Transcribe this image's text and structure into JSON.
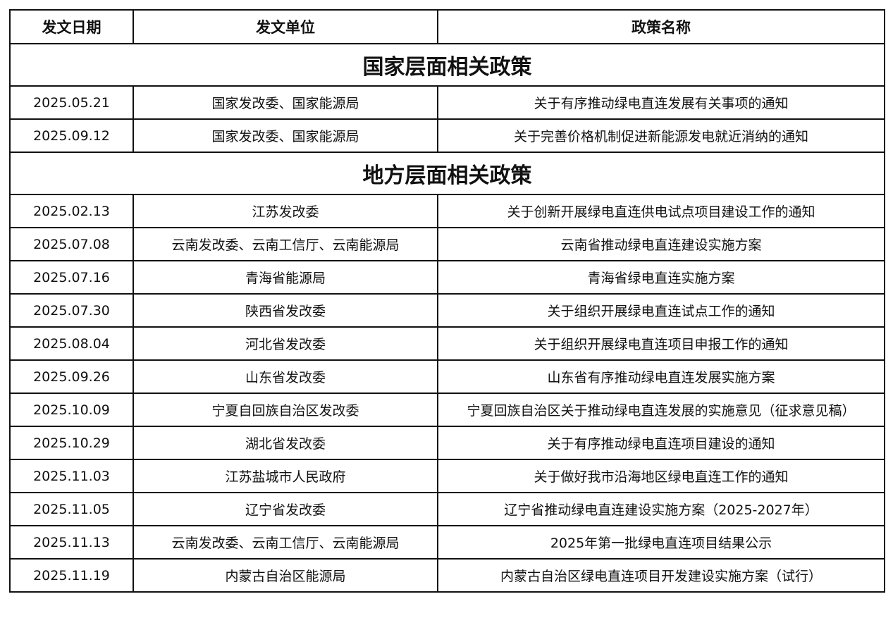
{
  "headers": [
    "发文日期",
    "发文单位",
    "政策名称"
  ],
  "sections": [
    {
      "title": "国家层面相关政策",
      "rows": [
        [
          "2025.05.21",
          "国家发改委、国家能源局",
          "关于有序推动绿电直连发展有关事项的通知"
        ],
        [
          "2025.09.12",
          "国家发改委、国家能源局",
          "关于完善价格机制促进新能源发电就近消纳的通知"
        ]
      ]
    },
    {
      "title": "地方层面相关政策",
      "rows": [
        [
          "2025.02.13",
          "江苏发改委",
          "关于创新开展绿电直连供电试点项目建设工作的通知"
        ],
        [
          "2025.07.08",
          "云南发改委、云南工信厅、云南能源局",
          "云南省推动绿电直连建设实施方案"
        ],
        [
          "2025.07.16",
          "青海省能源局",
          "青海省绿电直连实施方案"
        ],
        [
          "2025.07.30",
          "陕西省发改委",
          "关于组织开展绿电直连试点工作的通知"
        ],
        [
          "2025.08.04",
          "河北省发改委",
          "关于组织开展绿电直连项目申报工作的通知"
        ],
        [
          "2025.09.26",
          "山东省发改委",
          "山东省有序推动绿电直连发展实施方案"
        ],
        [
          "2025.10.09",
          "宁夏自回族自治区发改委",
          "宁夏回族自治区关于推动绿电直连发展的实施意见（征求意见稿）"
        ],
        [
          "2025.10.29",
          "湖北省发改委",
          "关于有序推动绿电直连项目建设的通知"
        ],
        [
          "2025.11.03",
          "江苏盐城市人民政府",
          "关于做好我市沿海地区绿电直连工作的通知"
        ],
        [
          "2025.11.05",
          "辽宁省发改委",
          "辽宁省推动绿电直连建设实施方案（2025-2027年）"
        ],
        [
          "2025.11.13",
          "云南发改委、云南工信厅、云南能源局",
          "2025年第一批绿电直连项目结果公示"
        ],
        [
          "2025.11.19",
          "内蒙古自治区能源局",
          "内蒙古自治区绿电直连项目开发建设实施方案（试行）"
        ]
      ]
    }
  ]
}
